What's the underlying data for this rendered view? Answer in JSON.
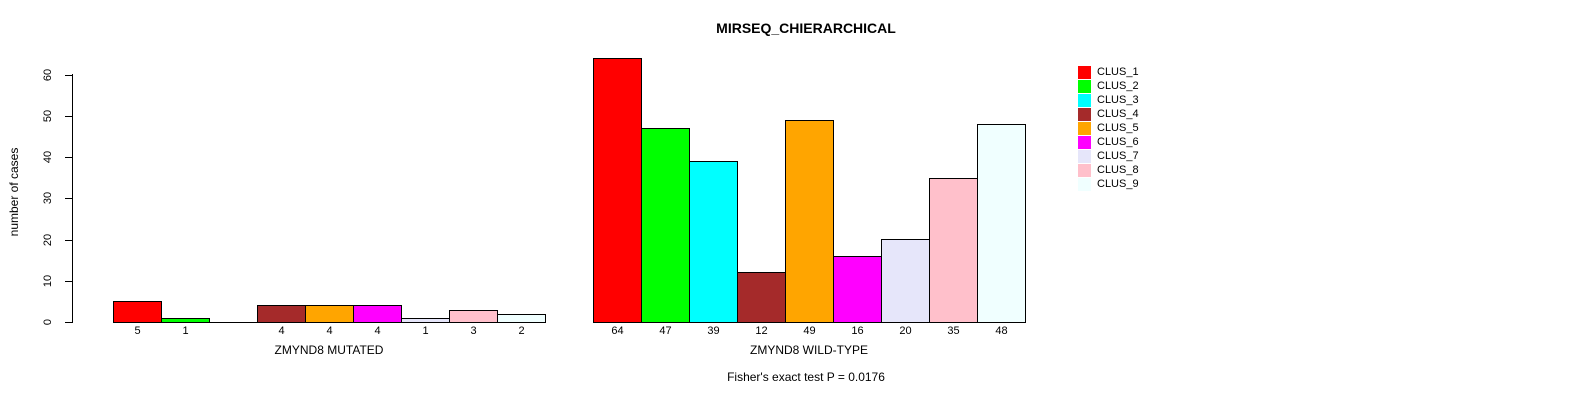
{
  "chart_data": {
    "type": "bar",
    "title": "MIRSEQ_CHIERARCHICAL",
    "ylabel": "number of cases",
    "xlabel": "",
    "ylim": [
      0,
      64
    ],
    "yticks": [
      0,
      10,
      20,
      30,
      40,
      50,
      60
    ],
    "grid": false,
    "legend_position": "top-right",
    "categories": [
      "CLUS_1",
      "CLUS_2",
      "CLUS_3",
      "CLUS_4",
      "CLUS_5",
      "CLUS_6",
      "CLUS_7",
      "CLUS_8",
      "CLUS_9"
    ],
    "colors": [
      "#FF0000",
      "#00FF00",
      "#00FFFF",
      "#A52A2A",
      "#FFA500",
      "#FF00FF",
      "#E6E6FA",
      "#FFC0CB",
      "#F0FFFF"
    ],
    "series": [
      {
        "name": "ZMYND8 MUTATED",
        "values": [
          5,
          1,
          0,
          4,
          4,
          4,
          1,
          3,
          2
        ]
      },
      {
        "name": "ZMYND8 WILD-TYPE",
        "values": [
          64,
          47,
          39,
          12,
          49,
          16,
          20,
          35,
          48
        ]
      }
    ],
    "bar_value_labels": true,
    "zero_bars_drawn_flat": true,
    "annotation": "Fisher's exact test P = 0.0176"
  }
}
